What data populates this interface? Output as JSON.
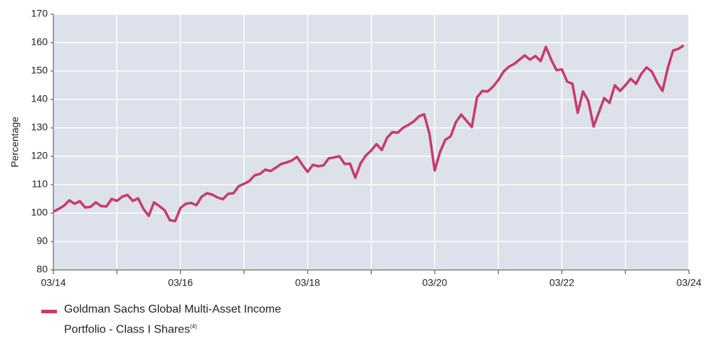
{
  "chart_data": {
    "type": "line",
    "y_label": "Percentage",
    "x": [
      0,
      1,
      2,
      3,
      4,
      5,
      6,
      7,
      8,
      9,
      10,
      11,
      12,
      13,
      14,
      15,
      16,
      17,
      18,
      19,
      20,
      21,
      22,
      23,
      24,
      25,
      26,
      27,
      28,
      29,
      30,
      31,
      32,
      33,
      34,
      35,
      36,
      37,
      38,
      39,
      40,
      41,
      42,
      43,
      44,
      45,
      46,
      47,
      48,
      49,
      50,
      51,
      52,
      53,
      54,
      55,
      56,
      57,
      58,
      59,
      60,
      61,
      62,
      63,
      64,
      65,
      66,
      67,
      68,
      69,
      70,
      71,
      72,
      73,
      74,
      75,
      76,
      77,
      78,
      79,
      80,
      81,
      82,
      83,
      84,
      85,
      86,
      87,
      88,
      89,
      90,
      91,
      92,
      93,
      94,
      95,
      96,
      97,
      98,
      99,
      100,
      101,
      102,
      103,
      104,
      105,
      106,
      107,
      108,
      109,
      110,
      111,
      112,
      113,
      114,
      115,
      116,
      117,
      118,
      119
    ],
    "series": [
      {
        "name": "Goldman Sachs Global Multi-Asset Income Portfolio - Class I Shares",
        "name_note": "(4)",
        "color": "#c83a6c",
        "values": [
          100.5,
          101.5,
          102.6,
          104.5,
          103.3,
          104.2,
          102.0,
          102.2,
          103.8,
          102.5,
          102.3,
          105.0,
          104.3,
          105.8,
          106.4,
          104.3,
          105.2,
          101.5,
          99.0,
          103.8,
          102.5,
          101.0,
          97.5,
          97.2,
          101.8,
          103.3,
          103.6,
          102.8,
          105.8,
          107.0,
          106.5,
          105.5,
          104.9,
          106.8,
          107.0,
          109.5,
          110.3,
          111.3,
          113.3,
          113.8,
          115.3,
          114.8,
          116.0,
          117.3,
          117.8,
          118.5,
          119.8,
          117.0,
          114.5,
          117.0,
          116.5,
          116.8,
          119.3,
          119.6,
          120.0,
          117.3,
          117.4,
          112.5,
          117.5,
          120.3,
          122.0,
          124.3,
          122.2,
          126.5,
          128.5,
          128.3,
          130.0,
          131.0,
          132.2,
          134.0,
          134.8,
          128.0,
          115.0,
          121.5,
          125.8,
          127.0,
          132.0,
          134.7,
          132.5,
          130.3,
          140.8,
          143.0,
          142.8,
          144.5,
          146.8,
          149.8,
          151.5,
          152.5,
          154.0,
          155.5,
          154.0,
          155.3,
          153.5,
          158.5,
          154.0,
          150.3,
          150.6,
          146.3,
          145.5,
          135.3,
          142.8,
          139.5,
          130.5,
          135.5,
          140.5,
          138.8,
          145.0,
          143.0,
          145.0,
          147.3,
          145.5,
          149.0,
          151.3,
          149.8,
          146.0,
          143.0,
          151.0,
          157.2,
          157.8,
          159.0
        ]
      }
    ],
    "xlim": [
      0,
      120
    ],
    "xticks": [
      {
        "value": 0,
        "label": "03/14"
      },
      {
        "value": 12,
        "label": null
      },
      {
        "value": 24,
        "label": "03/16"
      },
      {
        "value": 36,
        "label": null
      },
      {
        "value": 48,
        "label": "03/18"
      },
      {
        "value": 60,
        "label": null
      },
      {
        "value": 72,
        "label": "03/20"
      },
      {
        "value": 84,
        "label": null
      },
      {
        "value": 96,
        "label": "03/22"
      },
      {
        "value": 108,
        "label": null
      },
      {
        "value": 120,
        "label": "03/24"
      }
    ],
    "ylim": [
      80,
      170
    ],
    "yticks": [
      80,
      90,
      100,
      110,
      120,
      130,
      140,
      150,
      160,
      170
    ],
    "grid": true,
    "background": "#dde1ec"
  }
}
